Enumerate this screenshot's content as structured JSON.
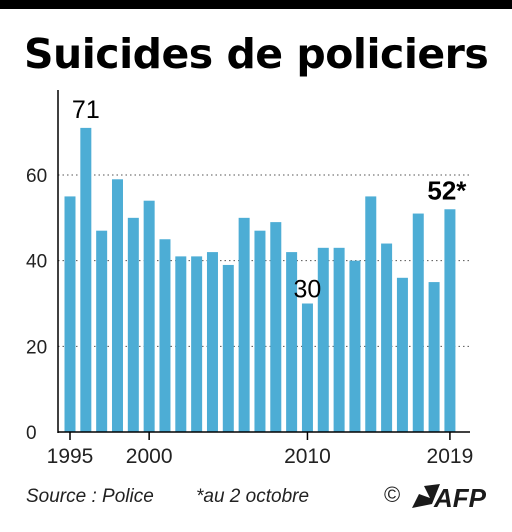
{
  "title": "Suicides de policiers",
  "footer": {
    "source": "Source : Police",
    "note": "*au 2 octobre",
    "copyright": "©",
    "logo": "AFP"
  },
  "colors": {
    "bar": "#4dadd5",
    "axis": "#000000",
    "grid": "#555555",
    "text": "#222222"
  },
  "chart_data": {
    "type": "bar",
    "title": "Suicides de policiers",
    "xlabel": "",
    "ylabel": "",
    "x": [
      1995,
      1996,
      1997,
      1998,
      1999,
      2000,
      2001,
      2002,
      2003,
      2004,
      2005,
      2006,
      2007,
      2008,
      2009,
      2010,
      2011,
      2012,
      2013,
      2014,
      2015,
      2016,
      2017,
      2018,
      2019
    ],
    "values": [
      55,
      71,
      47,
      59,
      50,
      54,
      45,
      41,
      41,
      42,
      39,
      50,
      47,
      49,
      42,
      30,
      43,
      43,
      40,
      55,
      44,
      36,
      51,
      35,
      52
    ],
    "ylim": [
      0,
      75
    ],
    "yticks": [
      0,
      20,
      40,
      60
    ],
    "xtick_labels": [
      {
        "year": 1995,
        "label": "1995"
      },
      {
        "year": 2000,
        "label": "2000"
      },
      {
        "year": 2010,
        "label": "2010"
      },
      {
        "year": 2019,
        "label": "2019"
      }
    ],
    "annotations": [
      {
        "year": 1996,
        "text": "71",
        "bold": false
      },
      {
        "year": 2010,
        "text": "30",
        "bold": false
      },
      {
        "year": 2019,
        "text": "52*",
        "bold": true
      }
    ],
    "grid": "horizontal dotted"
  }
}
